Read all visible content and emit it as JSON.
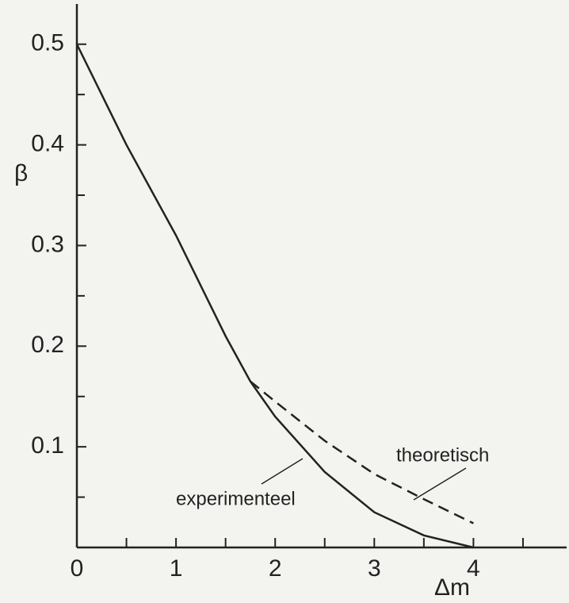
{
  "chart_data": {
    "type": "line",
    "x_label": "Δm",
    "y_label": "β",
    "x": [
      0,
      0.5,
      1,
      1.5,
      1.75,
      2,
      2.5,
      3,
      3.5,
      4
    ],
    "series": [
      {
        "name": "experimenteel",
        "color": "#222222",
        "dash": false,
        "values": [
          0.5,
          0.4,
          0.31,
          0.21,
          0.165,
          0.13,
          0.075,
          0.035,
          0.012,
          0
        ]
      },
      {
        "name": "theoretisch",
        "color": "#222222",
        "dash": true,
        "values": [
          null,
          null,
          null,
          null,
          0.165,
          0.145,
          0.106,
          0.073,
          0.048,
          0.024
        ]
      }
    ],
    "xlim": [
      0,
      4.94
    ],
    "ylim": [
      0,
      0.54
    ],
    "xticks": [
      0,
      1,
      2,
      3,
      4
    ],
    "xticks_minor": [
      0.5,
      1.5,
      2.5,
      3.5,
      4.5
    ],
    "yticks": [
      0.1,
      0.2,
      0.3,
      0.4,
      0.5
    ],
    "yticks_minor": [
      0.05,
      0.15,
      0.25,
      0.35,
      0.45
    ],
    "grid": false
  }
}
